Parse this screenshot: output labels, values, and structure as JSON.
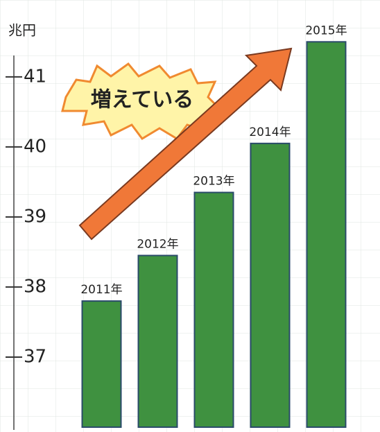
{
  "chart_data": {
    "type": "bar",
    "y_unit": "兆円",
    "annotation": "増えている",
    "categories": [
      "2011年",
      "2012年",
      "2013年",
      "2014年",
      "2015年"
    ],
    "values": [
      37.8,
      38.45,
      39.35,
      40.05,
      41.5
    ],
    "color": "#3f9140",
    "ylim": [
      36,
      41.8
    ],
    "yticks": [
      37,
      38,
      39,
      40,
      41
    ],
    "grid": true
  }
}
